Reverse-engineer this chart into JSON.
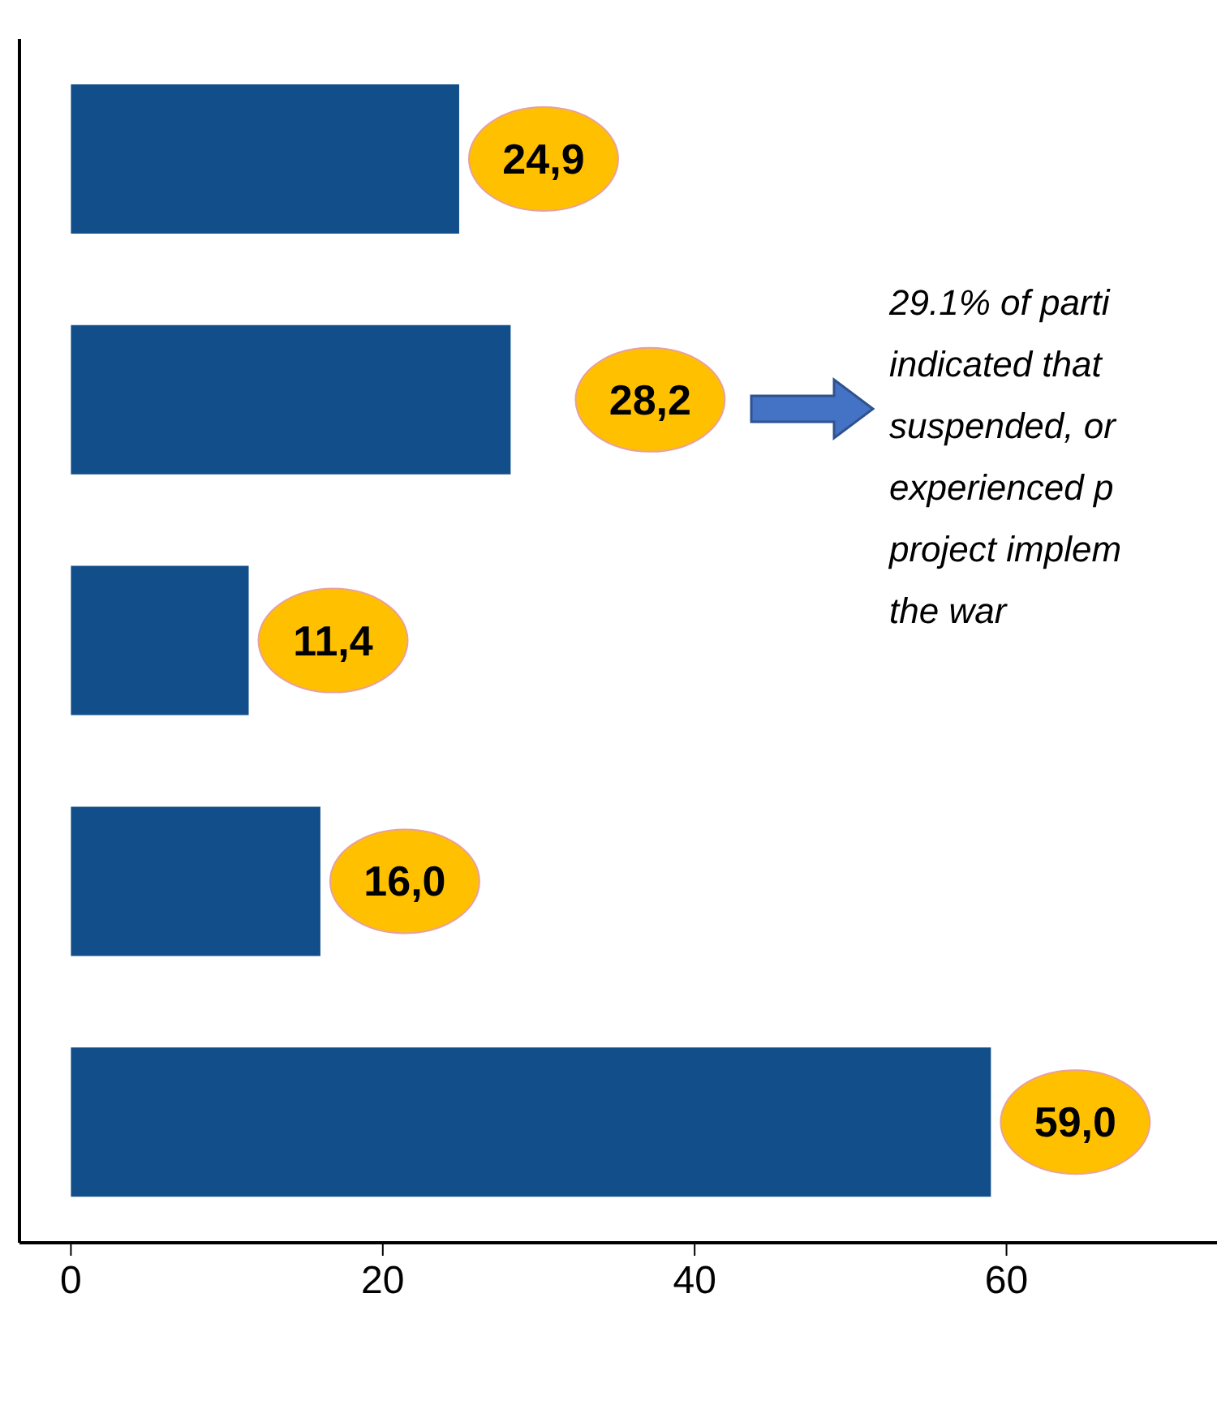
{
  "chart_data": {
    "type": "bar",
    "orientation": "horizontal",
    "categories": [
      null,
      null,
      null,
      null,
      null
    ],
    "values": [
      24.9,
      28.2,
      11.4,
      16.0,
      59.0
    ],
    "color": "#124e89",
    "value_labels": [
      "24,9",
      "28,2",
      "11,4",
      "16,0",
      "59,0"
    ],
    "xlim": [
      -3.3,
      73.5
    ],
    "xticks": [
      0,
      20,
      40,
      60
    ],
    "tick_labels": "x",
    "annotations": [
      "29.1% of parti\nindicated that\nsuspended, or\nexperienced p\nproject implem\nthe war"
    ]
  }
}
